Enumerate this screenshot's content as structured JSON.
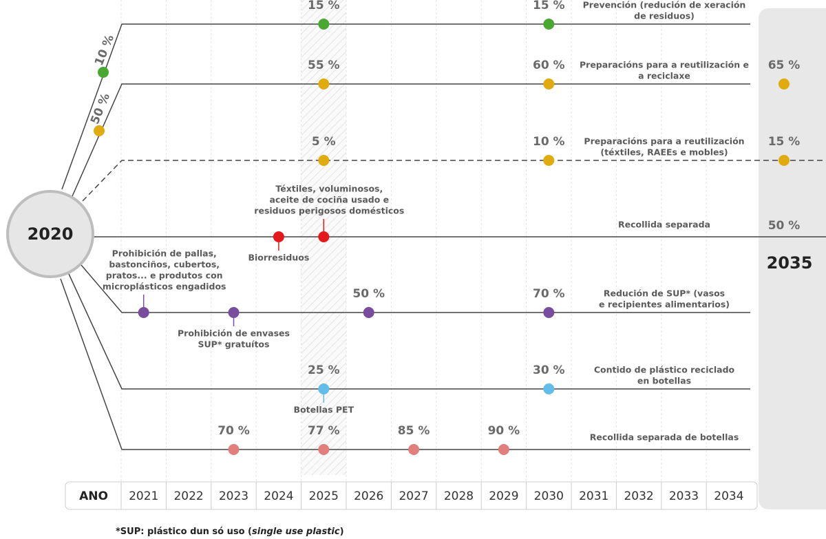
{
  "center": "2020",
  "end": "2035",
  "axis_label": "ANO",
  "years": [
    "2021",
    "2022",
    "2023",
    "2024",
    "2025",
    "2026",
    "2027",
    "2028",
    "2029",
    "2030",
    "2031",
    "2032",
    "2033",
    "2034"
  ],
  "rows": [
    {
      "label": [
        "Prevención (redución de xeración",
        "de residuos)"
      ],
      "color": "#4aa832",
      "branch_label": "10 %",
      "points": [
        {
          "year": "2025",
          "value": "15 %"
        },
        {
          "year": "2030",
          "value": "15 %"
        }
      ]
    },
    {
      "label": [
        "Preparacións para a reutilización e",
        "a reciclaxe"
      ],
      "color": "#e0ab0c",
      "branch_label": "50 %",
      "points": [
        {
          "year": "2025",
          "value": "55 %"
        },
        {
          "year": "2030",
          "value": "60 %"
        },
        {
          "year": "2035",
          "value": "65 %"
        }
      ]
    },
    {
      "label": [
        "Preparacións para a reutilización",
        "(téxtiles, RAEEs e mobles)"
      ],
      "color": "#e0ab0c",
      "dashed": true,
      "points": [
        {
          "year": "2025",
          "value": "5 %"
        },
        {
          "year": "2030",
          "value": "10 %"
        },
        {
          "year": "2035",
          "value": "15 %"
        }
      ]
    },
    {
      "label": [
        "Recollida separada"
      ],
      "color": "#e3191c",
      "end_value": "50 %",
      "points": [
        {
          "year": "2024",
          "note": [
            "Biorresiduos"
          ],
          "note_side": "below"
        },
        {
          "year": "2025",
          "note": [
            "Téxtiles, voluminosos,",
            "aceite de cociña usado e",
            "residuos perigosos domésticos"
          ],
          "note_side": "above"
        }
      ]
    },
    {
      "label": [
        "Redución de SUP* (vasos",
        "e recipientes alimentarios)"
      ],
      "color": "#7a4c9e",
      "points": [
        {
          "year": "2021",
          "note": [
            "Prohibición de pallas,",
            "bastonciños, cubertos,",
            "pratos... e produtos con",
            "microplásticos engadidos"
          ],
          "note_side": "above"
        },
        {
          "year": "2023",
          "note": [
            "Prohibición de envases",
            "SUP* gratuítos"
          ],
          "note_side": "below"
        },
        {
          "year": "2026",
          "value": "50 %"
        },
        {
          "year": "2030",
          "value": "70 %"
        }
      ]
    },
    {
      "label": [
        "Contido de plástico reciclado",
        "en botellas"
      ],
      "color": "#62bde9",
      "points": [
        {
          "year": "2025",
          "value": "25 %",
          "note": [
            "Botellas PET"
          ],
          "note_side": "below"
        },
        {
          "year": "2030",
          "value": "30 %"
        }
      ]
    },
    {
      "label": [
        "Recollida separada de botellas"
      ],
      "color": "#e07f7b",
      "points": [
        {
          "year": "2023",
          "value": "70 %"
        },
        {
          "year": "2025",
          "value": "77 %"
        },
        {
          "year": "2027",
          "value": "85 %"
        },
        {
          "year": "2029",
          "value": "90 %"
        }
      ]
    }
  ],
  "footnote": {
    "text": "*SUP: plástico dun só uso (",
    "italic": "single use plastic",
    "close": ")"
  }
}
